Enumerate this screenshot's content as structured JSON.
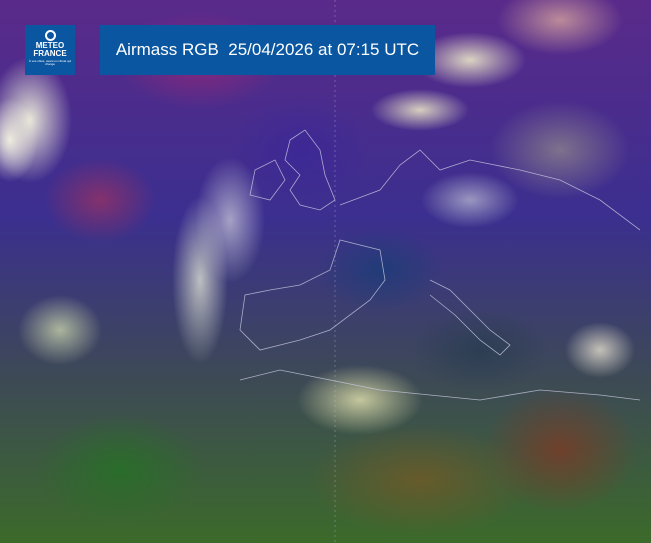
{
  "logo": {
    "line1": "METEO",
    "line2": "FRANCE",
    "tagline": "À vos côtés, avant un climat qui change"
  },
  "title": "Airmass RGB  25/04/2026 at 07:15 UTC",
  "colors": {
    "banner": "#0a56a0",
    "borders": "#c8c8e0"
  }
}
